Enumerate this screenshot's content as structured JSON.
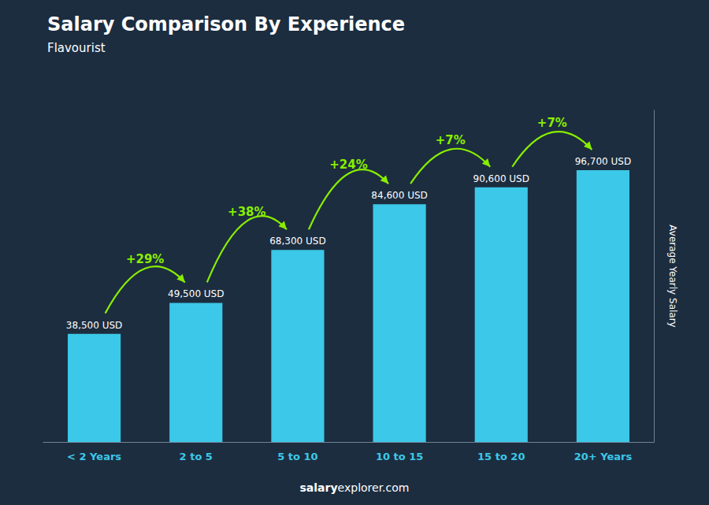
{
  "chart_data": {
    "type": "bar",
    "title": "Salary Comparison By Experience",
    "subtitle": "Flavourist",
    "categories": [
      "< 2 Years",
      "2 to 5",
      "5 to 10",
      "10 to 15",
      "15 to 20",
      "20+ Years"
    ],
    "values": [
      38500,
      49500,
      68300,
      84600,
      90600,
      96700
    ],
    "value_labels": [
      "38,500 USD",
      "49,500 USD",
      "68,300 USD",
      "84,600 USD",
      "90,600 USD",
      "96,700 USD"
    ],
    "data_labels": true,
    "color": "#3cc8e8",
    "ylabel": "Average Yearly Salary",
    "ylim": [
      0,
      118000
    ],
    "grid": false,
    "tick_labels": "x",
    "annotations": [
      "+29%",
      "+38%",
      "+24%",
      "+7%",
      "+7%"
    ],
    "footer": [
      "salary",
      "explorer.com"
    ]
  }
}
